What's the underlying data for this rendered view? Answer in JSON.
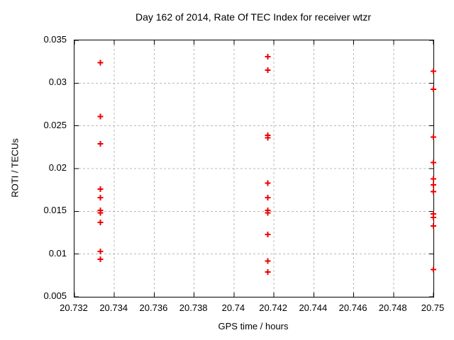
{
  "chart_data": {
    "type": "scatter",
    "title": "Day 162 of 2014, Rate Of TEC Index for receiver wtzr",
    "xlabel": "GPS time / hours",
    "ylabel": "ROTI / TECUs",
    "xlim": [
      20.732,
      20.75
    ],
    "ylim": [
      0.005,
      0.035
    ],
    "grid": true,
    "legend": "none",
    "marker": "plus",
    "marker_color": "#ee0000",
    "grid_color": "#b8b8b8",
    "axis_color": "#000000",
    "background_color": "#ffffff",
    "xticks": [
      {
        "value": 20.732,
        "label": "20.732"
      },
      {
        "value": 20.734,
        "label": "20.734"
      },
      {
        "value": 20.736,
        "label": "20.736"
      },
      {
        "value": 20.738,
        "label": "20.738"
      },
      {
        "value": 20.74,
        "label": "20.74"
      },
      {
        "value": 20.742,
        "label": "20.742"
      },
      {
        "value": 20.744,
        "label": "20.744"
      },
      {
        "value": 20.746,
        "label": "20.746"
      },
      {
        "value": 20.748,
        "label": "20.748"
      },
      {
        "value": 20.75,
        "label": "20.75"
      }
    ],
    "yticks": [
      {
        "value": 0.005,
        "label": "0.005"
      },
      {
        "value": 0.01,
        "label": "0.01"
      },
      {
        "value": 0.015,
        "label": "0.015"
      },
      {
        "value": 0.02,
        "label": "0.02"
      },
      {
        "value": 0.025,
        "label": "0.025"
      },
      {
        "value": 0.03,
        "label": "0.03"
      },
      {
        "value": 0.035,
        "label": "0.035"
      }
    ],
    "series": [
      {
        "name": "",
        "points": [
          [
            20.7333,
            0.0324
          ],
          [
            20.7333,
            0.0261
          ],
          [
            20.7333,
            0.0229
          ],
          [
            20.7333,
            0.0176
          ],
          [
            20.7333,
            0.0166
          ],
          [
            20.7333,
            0.0151
          ],
          [
            20.7333,
            0.0148
          ],
          [
            20.7333,
            0.0137
          ],
          [
            20.7333,
            0.0103
          ],
          [
            20.7333,
            0.0094
          ],
          [
            20.7417,
            0.0331
          ],
          [
            20.7417,
            0.0315
          ],
          [
            20.7417,
            0.0239
          ],
          [
            20.7417,
            0.0236
          ],
          [
            20.7417,
            0.0183
          ],
          [
            20.7417,
            0.0166
          ],
          [
            20.7417,
            0.0151
          ],
          [
            20.7417,
            0.0148
          ],
          [
            20.7417,
            0.0123
          ],
          [
            20.7417,
            0.0092
          ],
          [
            20.7417,
            0.0079
          ],
          [
            20.75,
            0.0314
          ],
          [
            20.75,
            0.0293
          ],
          [
            20.75,
            0.0237
          ],
          [
            20.75,
            0.0207
          ],
          [
            20.75,
            0.0188
          ],
          [
            20.75,
            0.0181
          ],
          [
            20.75,
            0.0173
          ],
          [
            20.75,
            0.0147
          ],
          [
            20.75,
            0.0143
          ],
          [
            20.75,
            0.0133
          ],
          [
            20.75,
            0.0082
          ]
        ]
      }
    ]
  }
}
